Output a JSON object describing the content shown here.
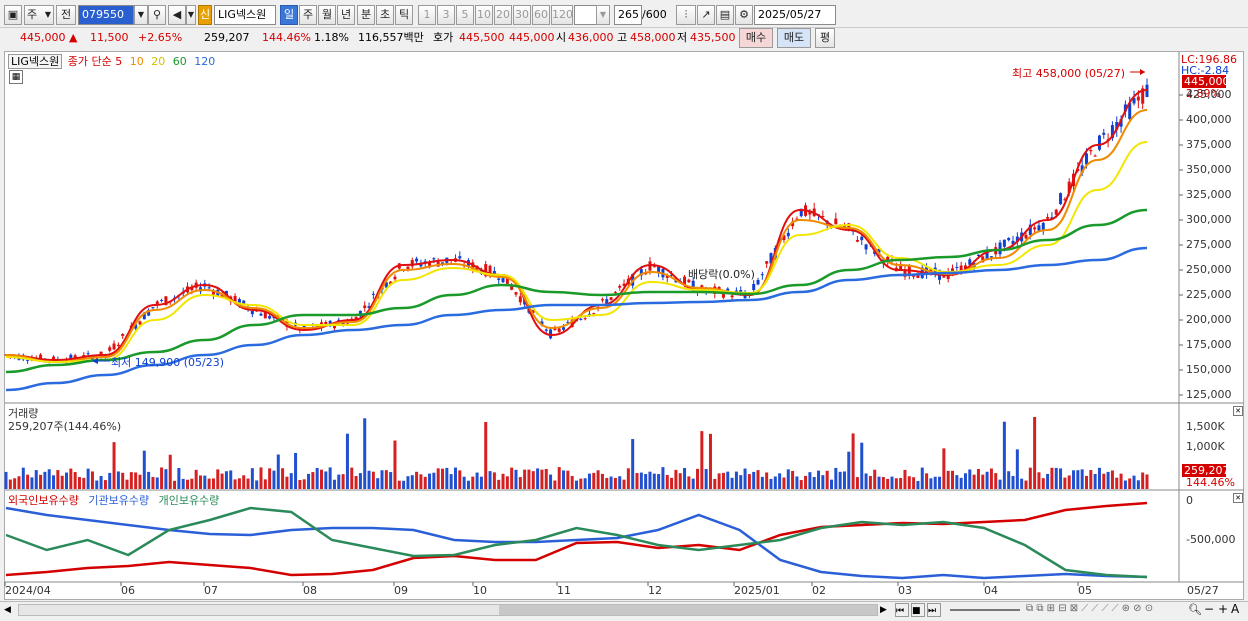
{
  "toolbar": {
    "market": "주",
    "prev_label": "전",
    "code": "079550",
    "stock_name": "LIG넥스원",
    "new_badge": "신",
    "periods": [
      "일",
      "주",
      "월",
      "년",
      "분",
      "초",
      "틱"
    ],
    "minutes": [
      "1",
      "3",
      "5",
      "10",
      "20",
      "30",
      "60",
      "120"
    ],
    "count": "265",
    "count_total": "/600",
    "date": "2025/05/27"
  },
  "quote": {
    "price": "445,000",
    "change": "11,500",
    "change_pct": "+2.65%",
    "volume": "259,207",
    "vol_ratio": "144.46%",
    "turnover_pct": "1.18%",
    "amount": "116,557백만",
    "bid_label": "호가",
    "bid1": "445,500",
    "bid2": "445,000",
    "open_label": "시",
    "open": "436,000",
    "high_label": "고",
    "high": "458,000",
    "low_label": "저",
    "low": "435,500",
    "buy_btn": "매수",
    "sell_btn": "매도",
    "eval_btn": "평"
  },
  "legend": {
    "name": "LIG넥스원",
    "title": "종가 단순",
    "ma": [
      {
        "label": "5",
        "color": "#e01010"
      },
      {
        "label": "10",
        "color": "#f08a00"
      },
      {
        "label": "20",
        "color": "#f2e600"
      },
      {
        "label": "60",
        "color": "#1a9a2a"
      },
      {
        "label": "120",
        "color": "#2b6be0"
      }
    ]
  },
  "price_axis": {
    "lc": "LC:196.86",
    "hc": "HC:-2.84",
    "current": "445,000",
    "pct": "2.89%",
    "ticks": [
      "425,000",
      "400,000",
      "375,000",
      "350,000",
      "325,000",
      "300,000",
      "275,000",
      "250,000",
      "225,000",
      "200,000",
      "175,000",
      "150,000",
      "125,000"
    ]
  },
  "annotations": {
    "high": "최고 458,000 (05/27)",
    "low": "최저 149,900 (05/23)",
    "dividend": "배당락(0.0%)"
  },
  "volume_panel": {
    "title": "거래량",
    "info": "259,207주(144.46%)",
    "ticks": [
      "1,500K",
      "1,000K"
    ],
    "current": "259,207",
    "pct": "144.46%"
  },
  "holdings_panel": {
    "legend": [
      {
        "label": "외국인보유수량",
        "color": "#d40000"
      },
      {
        "label": "기관보유수량",
        "color": "#2b5fd8"
      },
      {
        "label": "개인보유수량",
        "color": "#2a8a5a"
      }
    ],
    "ticks": [
      "0",
      "-500,000"
    ]
  },
  "x_axis": {
    "labels": [
      "2024/04",
      "06",
      "07",
      "08",
      "09",
      "10",
      "11",
      "12",
      "2025/01",
      "02",
      "03",
      "04",
      "05"
    ],
    "end": "05/27"
  },
  "chart_data": {
    "type": "line",
    "description_units": "KRW",
    "ylim": [
      125000,
      458000
    ],
    "series": [
      {
        "name": "5",
        "values": [
          165000,
          160000,
          165000,
          215000,
          235000,
          210000,
          190000,
          200000,
          255000,
          260000,
          245000,
          185000,
          215000,
          255000,
          230000,
          225000,
          310000,
          290000,
          250000,
          245000,
          270000,
          300000,
          375000,
          430000
        ]
      },
      {
        "name": "10",
        "values": [
          165000,
          158000,
          163000,
          210000,
          230000,
          212000,
          192000,
          198000,
          250000,
          256000,
          243000,
          192000,
          212000,
          248000,
          232000,
          226000,
          300000,
          292000,
          255000,
          246000,
          262000,
          290000,
          360000,
          410000
        ]
      },
      {
        "name": "20",
        "values": [
          163000,
          158000,
          160000,
          200000,
          225000,
          215000,
          195000,
          195000,
          240000,
          252000,
          245000,
          200000,
          205000,
          238000,
          230000,
          227000,
          285000,
          295000,
          262000,
          248000,
          255000,
          275000,
          330000,
          378000
        ]
      },
      {
        "name": "60",
        "values": [
          148000,
          155000,
          160000,
          168000,
          180000,
          195000,
          205000,
          205000,
          212000,
          225000,
          235000,
          228000,
          225000,
          228000,
          228000,
          226000,
          235000,
          250000,
          260000,
          263000,
          270000,
          280000,
          295000,
          310000
        ]
      },
      {
        "name": "120",
        "values": [
          130000,
          137000,
          145000,
          155000,
          165000,
          175000,
          185000,
          190000,
          195000,
          205000,
          210000,
          215000,
          215000,
          217000,
          218000,
          220000,
          228000,
          240000,
          245000,
          247000,
          250000,
          255000,
          260000,
          272000
        ]
      }
    ]
  }
}
